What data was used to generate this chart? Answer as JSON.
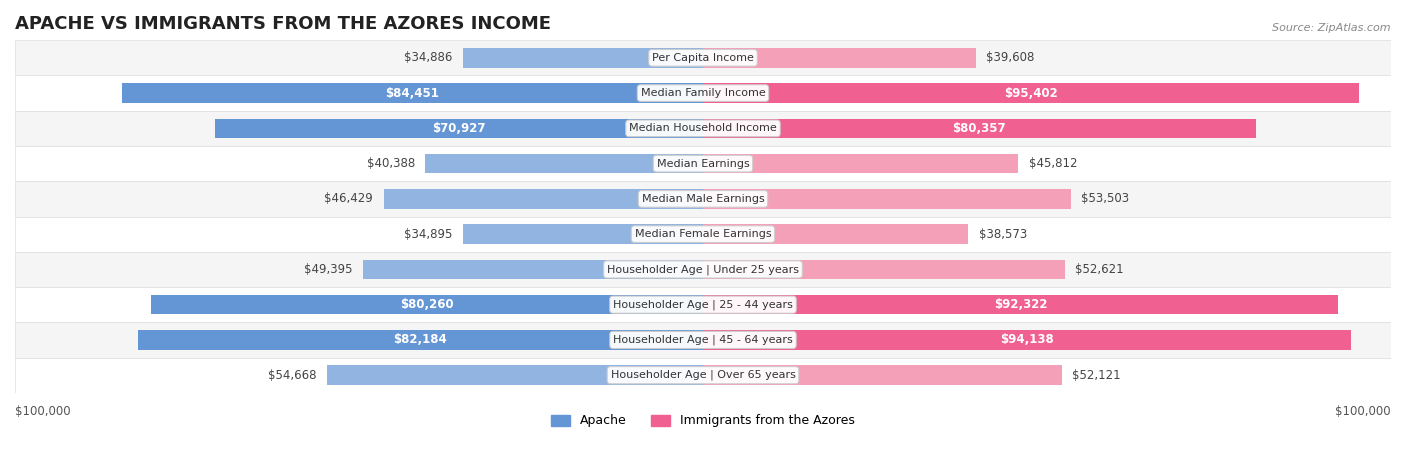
{
  "title": "APACHE VS IMMIGRANTS FROM THE AZORES INCOME",
  "source": "Source: ZipAtlas.com",
  "categories": [
    "Per Capita Income",
    "Median Family Income",
    "Median Household Income",
    "Median Earnings",
    "Median Male Earnings",
    "Median Female Earnings",
    "Householder Age | Under 25 years",
    "Householder Age | 25 - 44 years",
    "Householder Age | 45 - 64 years",
    "Householder Age | Over 65 years"
  ],
  "apache_values": [
    34886,
    84451,
    70927,
    40388,
    46429,
    34895,
    49395,
    80260,
    82184,
    54668
  ],
  "azores_values": [
    39608,
    95402,
    80357,
    45812,
    53503,
    38573,
    52621,
    92322,
    94138,
    52121
  ],
  "apache_labels": [
    "$34,886",
    "$84,451",
    "$70,927",
    "$40,388",
    "$46,429",
    "$34,895",
    "$49,395",
    "$80,260",
    "$82,184",
    "$54,668"
  ],
  "azores_labels": [
    "$39,608",
    "$95,402",
    "$80,357",
    "$45,812",
    "$53,503",
    "$38,573",
    "$52,621",
    "$92,322",
    "$94,138",
    "$52,121"
  ],
  "max_value": 100000,
  "apache_color": "#92b4e0",
  "apache_color_strong": "#6495d4",
  "azores_color": "#f4a0b8",
  "azores_color_strong": "#f06090",
  "row_bg_light": "#f5f5f5",
  "row_bg_white": "#ffffff",
  "apache_legend": "Apache",
  "azores_legend": "Immigrants from the Azores",
  "xlabel_left": "$100,000",
  "xlabel_right": "$100,000",
  "title_fontsize": 13,
  "label_fontsize": 8.5,
  "category_fontsize": 8,
  "legend_fontsize": 9,
  "bar_height": 0.55
}
